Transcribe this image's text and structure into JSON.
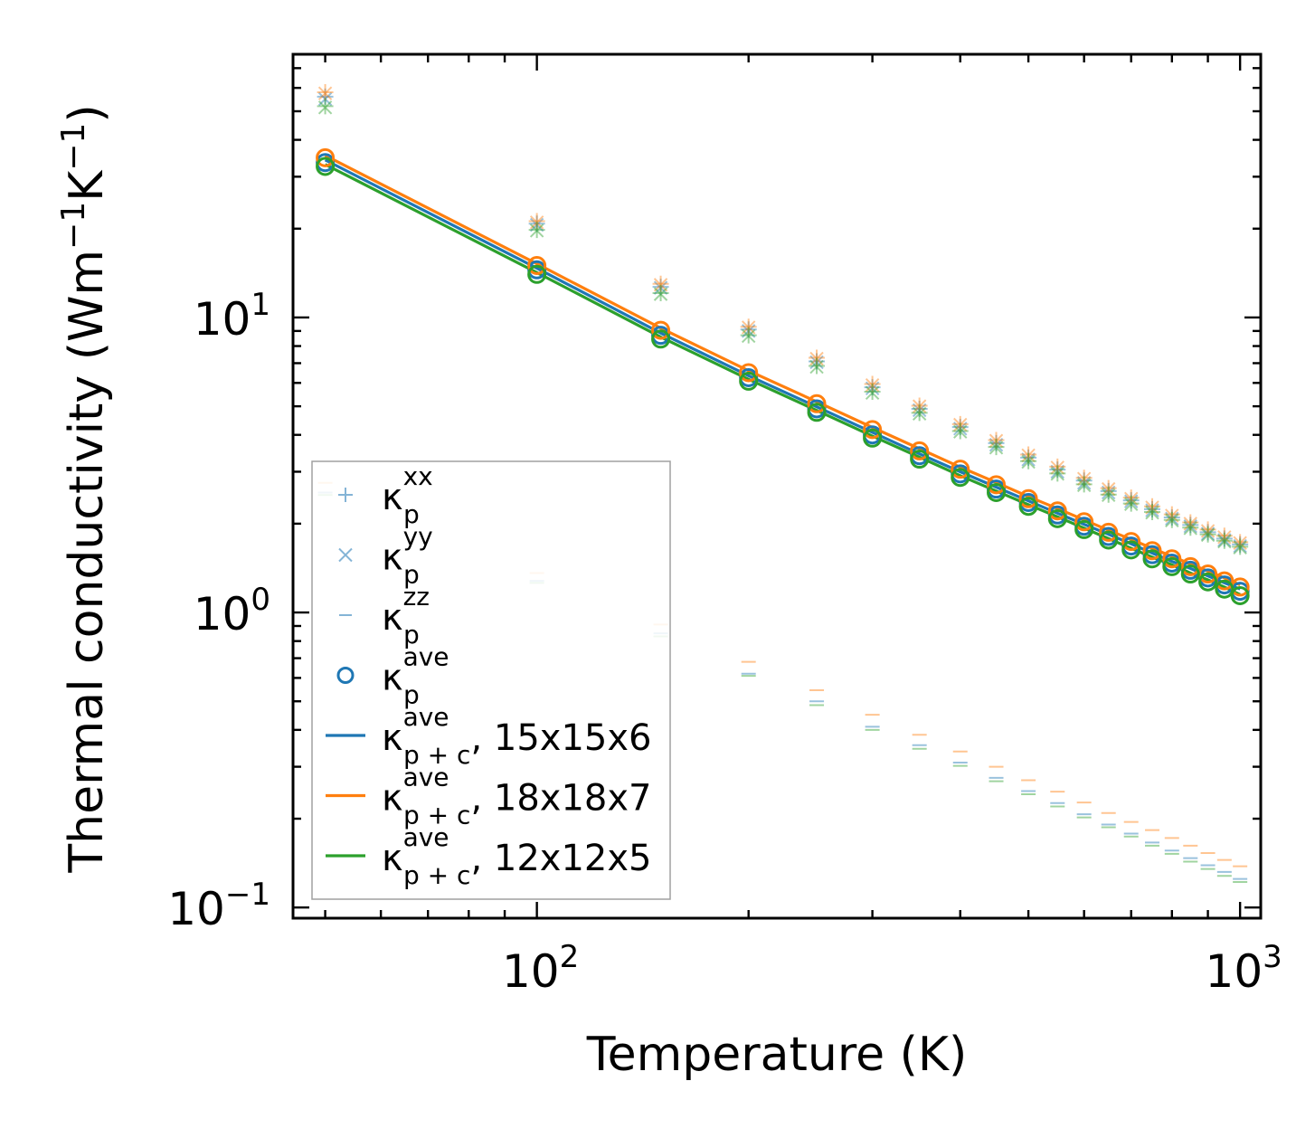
{
  "chart_data": {
    "type": "scatter",
    "xscale": "log",
    "yscale": "log",
    "xlim": [
      45,
      1070
    ],
    "ylim": [
      0.092,
      78
    ],
    "xlabel": "Temperature (K)",
    "ylabel_main": "Thermal conductivity (Wm",
    "ylabel_sup1": "−1",
    "ylabel_mid": "K",
    "ylabel_sup2": "−1",
    "ylabel_end": ")",
    "x_ticks": [
      {
        "value": 100,
        "base": "10",
        "exp": "2"
      },
      {
        "value": 1000,
        "base": "10",
        "exp": "3"
      }
    ],
    "y_ticks": [
      {
        "value": 0.1,
        "base": "10",
        "exp": "−1"
      },
      {
        "value": 1,
        "base": "10",
        "exp": "0"
      },
      {
        "value": 10,
        "base": "10",
        "exp": "1"
      }
    ],
    "temperatures": [
      50,
      100,
      150,
      200,
      250,
      300,
      350,
      400,
      450,
      500,
      550,
      600,
      650,
      700,
      750,
      800,
      850,
      900,
      950,
      1000
    ],
    "colors": {
      "blue": "#1f77b4",
      "orange": "#ff7f0e",
      "green": "#2ca02c"
    },
    "series": [
      {
        "name": "15x15x6",
        "color": "#1f77b4",
        "kxx": [
          56.0,
          20.8,
          12.7,
          9.1,
          7.1,
          5.8,
          4.9,
          4.25,
          3.75,
          3.35,
          3.05,
          2.8,
          2.58,
          2.4,
          2.24,
          2.1,
          1.98,
          1.87,
          1.78,
          1.7
        ],
        "kyy": [
          55.0,
          20.6,
          12.6,
          9.0,
          7.05,
          5.75,
          4.85,
          4.2,
          3.7,
          3.3,
          3.0,
          2.75,
          2.55,
          2.38,
          2.22,
          2.08,
          1.96,
          1.85,
          1.76,
          1.68
        ],
        "kzz": [
          2.55,
          1.28,
          0.85,
          0.62,
          0.5,
          0.41,
          0.355,
          0.31,
          0.275,
          0.248,
          0.226,
          0.207,
          0.191,
          0.178,
          0.166,
          0.156,
          0.147,
          0.139,
          0.132,
          0.125
        ],
        "kave": [
          33.5,
          14.5,
          8.7,
          6.25,
          4.9,
          4.0,
          3.4,
          2.95,
          2.62,
          2.36,
          2.14,
          1.96,
          1.81,
          1.68,
          1.57,
          1.47,
          1.39,
          1.31,
          1.24,
          1.18
        ],
        "kpc": [
          34.2,
          14.7,
          8.85,
          6.35,
          4.98,
          4.08,
          3.45,
          3.0,
          2.66,
          2.39,
          2.17,
          1.99,
          1.84,
          1.71,
          1.59,
          1.49,
          1.41,
          1.33,
          1.26,
          1.2
        ]
      },
      {
        "name": "18x18x7",
        "color": "#ff7f0e",
        "kxx": [
          58.0,
          21.2,
          13.0,
          9.3,
          7.3,
          5.95,
          5.02,
          4.35,
          3.84,
          3.43,
          3.12,
          2.86,
          2.64,
          2.45,
          2.29,
          2.15,
          2.02,
          1.91,
          1.82,
          1.73
        ],
        "kyy": [
          57.5,
          21.0,
          12.9,
          9.25,
          7.25,
          5.9,
          5.0,
          4.33,
          3.82,
          3.41,
          3.1,
          2.84,
          2.62,
          2.43,
          2.27,
          2.13,
          2.0,
          1.89,
          1.8,
          1.72
        ],
        "kzz": [
          2.75,
          1.36,
          0.91,
          0.68,
          0.545,
          0.45,
          0.385,
          0.338,
          0.3,
          0.27,
          0.247,
          0.227,
          0.209,
          0.195,
          0.183,
          0.172,
          0.162,
          0.153,
          0.145,
          0.138
        ],
        "kave": [
          34.8,
          15.0,
          9.05,
          6.5,
          5.1,
          4.17,
          3.53,
          3.06,
          2.71,
          2.43,
          2.21,
          2.03,
          1.87,
          1.74,
          1.62,
          1.52,
          1.43,
          1.35,
          1.28,
          1.22
        ],
        "kpc": [
          35.4,
          15.2,
          9.2,
          6.6,
          5.18,
          4.24,
          3.59,
          3.11,
          2.76,
          2.47,
          2.25,
          2.06,
          1.9,
          1.77,
          1.65,
          1.55,
          1.46,
          1.38,
          1.31,
          1.24
        ]
      },
      {
        "name": "12x12x5",
        "color": "#2ca02c",
        "kxx": [
          52.0,
          19.8,
          12.1,
          8.7,
          6.85,
          5.6,
          4.75,
          4.12,
          3.64,
          3.26,
          2.96,
          2.72,
          2.51,
          2.34,
          2.19,
          2.06,
          1.94,
          1.84,
          1.75,
          1.67
        ],
        "kyy": [
          51.5,
          19.7,
          12.0,
          8.65,
          6.8,
          5.55,
          4.72,
          4.1,
          3.62,
          3.24,
          2.95,
          2.7,
          2.5,
          2.33,
          2.18,
          2.05,
          1.93,
          1.83,
          1.74,
          1.66
        ],
        "kzz": [
          2.5,
          1.26,
          0.83,
          0.61,
          0.485,
          0.4,
          0.345,
          0.302,
          0.268,
          0.242,
          0.22,
          0.202,
          0.187,
          0.174,
          0.162,
          0.152,
          0.143,
          0.135,
          0.128,
          0.122
        ],
        "kave": [
          32.5,
          14.0,
          8.45,
          6.08,
          4.77,
          3.9,
          3.31,
          2.87,
          2.55,
          2.29,
          2.08,
          1.91,
          1.76,
          1.63,
          1.52,
          1.43,
          1.35,
          1.27,
          1.2,
          1.14
        ],
        "kpc": [
          33.0,
          14.2,
          8.58,
          6.17,
          4.84,
          3.96,
          3.36,
          2.91,
          2.58,
          2.32,
          2.11,
          1.93,
          1.78,
          1.65,
          1.54,
          1.45,
          1.36,
          1.29,
          1.22,
          1.15
        ]
      }
    ],
    "legend": [
      {
        "marker": "plus",
        "color": "#1f77b4",
        "base": "κ",
        "sub": "p",
        "sup": "xx",
        "suffix": ""
      },
      {
        "marker": "x",
        "color": "#1f77b4",
        "base": "κ",
        "sub": "p",
        "sup": "yy",
        "suffix": ""
      },
      {
        "marker": "dash",
        "color": "#1f77b4",
        "base": "κ",
        "sub": "p",
        "sup": "zz",
        "suffix": ""
      },
      {
        "marker": "circle",
        "color": "#1f77b4",
        "base": "κ",
        "sub": "p",
        "sup": "ave",
        "suffix": ""
      },
      {
        "marker": "line",
        "color": "#1f77b4",
        "base": "κ",
        "sub": "p + c",
        "sup": "ave",
        "suffix": ", 15x15x6"
      },
      {
        "marker": "line",
        "color": "#ff7f0e",
        "base": "κ",
        "sub": "p + c",
        "sup": "ave",
        "suffix": ", 18x18x7"
      },
      {
        "marker": "line",
        "color": "#2ca02c",
        "base": "κ",
        "sub": "p + c",
        "sup": "ave",
        "suffix": ", 12x12x5"
      }
    ],
    "legend_position": "lower-left"
  }
}
